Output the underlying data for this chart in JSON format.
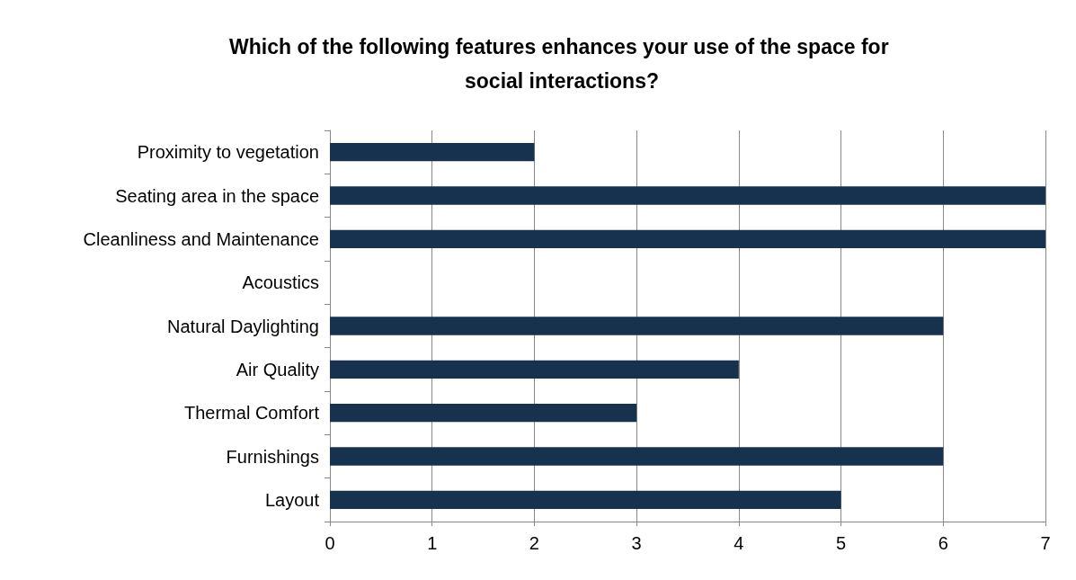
{
  "chart_data": {
    "type": "bar",
    "orientation": "horizontal",
    "title": "Which of the following features enhances your use of the space for social interactions?",
    "categories": [
      "Proximity to vegetation",
      "Seating area in the space",
      "Cleanliness and Maintenance",
      "Acoustics",
      "Natural Daylighting",
      "Air Quality",
      "Thermal Comfort",
      "Furnishings",
      "Layout"
    ],
    "values": [
      2,
      7,
      7,
      0,
      6,
      4,
      3,
      6,
      5
    ],
    "color": "#17324f",
    "xlim": [
      0,
      7
    ],
    "xticks": [
      0,
      1,
      2,
      3,
      4,
      5,
      6,
      7
    ],
    "grid": "x"
  }
}
